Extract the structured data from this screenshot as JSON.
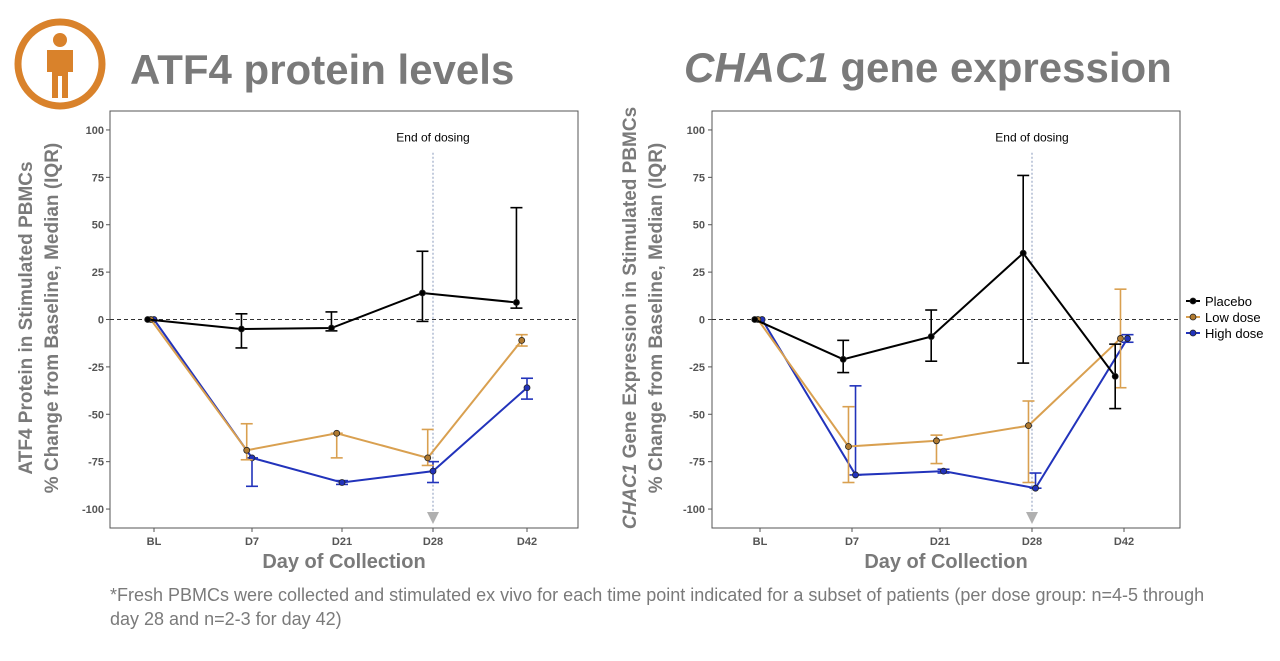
{
  "icon": {
    "name": "person-icon",
    "color": "#d9822b"
  },
  "footnote": "*Fresh PBMCs were collected and stimulated ex vivo for each time point indicated for a subset of patients (per dose group: n=4-5 through day  28 and n=2-3 for day 42)",
  "legend": {
    "items": [
      {
        "label": "Placebo",
        "color": "#000000"
      },
      {
        "label": "Low dose",
        "color": "#d9a050"
      },
      {
        "label": "High dose",
        "color": "#2233bb"
      }
    ]
  },
  "chart_data": [
    {
      "type": "line",
      "title": "ATF4 protein levels",
      "title_italic": "",
      "ylabel_lines": [
        "ATF4 Protein in Stimulated PBMCs",
        "% Change from Baseline, Median (IQR)"
      ],
      "xlabel": "Day of Collection",
      "categories": [
        "BL",
        "D7",
        "D21",
        "D28",
        "D42"
      ],
      "ylim": [
        -110,
        110
      ],
      "yticks": [
        100,
        75,
        50,
        25,
        0,
        -25,
        -50,
        -75,
        -100
      ],
      "ytick_labels": [
        "100",
        "75",
        "50",
        "25",
        "0",
        "-25",
        "-50",
        "-75",
        "-100"
      ],
      "reference_line_y": 0,
      "annotation": {
        "text": "End of dosing",
        "category": "D28"
      },
      "series": [
        {
          "name": "Placebo",
          "color": "#000000",
          "offset": -0.12,
          "values": [
            0,
            -5,
            -4.5,
            14,
            9
          ],
          "low": [
            null,
            -15,
            -6,
            -1,
            6
          ],
          "high": [
            null,
            3,
            4,
            36,
            59
          ]
        },
        {
          "name": "Low dose",
          "color": "#d9a050",
          "offset": -0.06,
          "values": [
            0,
            -69,
            -60,
            -73,
            -11
          ],
          "low": [
            null,
            -74,
            -73,
            -77,
            -14
          ],
          "high": [
            null,
            -55,
            -60,
            -58,
            -8
          ]
        },
        {
          "name": "High dose",
          "color": "#2233bb",
          "offset": 0,
          "values": [
            0,
            -73,
            -86,
            -80,
            -36
          ],
          "low": [
            null,
            -88,
            -87,
            -86,
            -42
          ],
          "high": [
            null,
            -73,
            -85,
            -75,
            -31
          ]
        }
      ]
    },
    {
      "type": "line",
      "title": "",
      "title_italic": "CHAC1",
      "title_rest": " gene expression",
      "ylabel_italic": "CHAC1",
      "ylabel_lines": [
        " Gene Expression in Stimulated PBMCs",
        "% Change from Baseline, Median (IQR)"
      ],
      "xlabel": "Day of Collection",
      "categories": [
        "BL",
        "D7",
        "D21",
        "D28",
        "D42"
      ],
      "ylim": [
        -110,
        110
      ],
      "yticks": [
        100,
        75,
        50,
        25,
        0,
        -25,
        -50,
        -75,
        -100
      ],
      "ytick_labels": [
        "100",
        "75",
        "50",
        "25",
        "0",
        "-25",
        "-50",
        "-75",
        "-100"
      ],
      "reference_line_y": 0,
      "annotation": {
        "text": "End of dosing",
        "category": "D28"
      },
      "series": [
        {
          "name": "Placebo",
          "color": "#000000",
          "offset": -0.1,
          "values": [
            0,
            -21,
            -9,
            35,
            -30
          ],
          "low": [
            null,
            -28,
            -22,
            -23,
            -47
          ],
          "high": [
            null,
            -11,
            5,
            76,
            -13
          ]
        },
        {
          "name": "Low dose",
          "color": "#d9a050",
          "offset": -0.04,
          "values": [
            0,
            -67,
            -64,
            -56,
            -10
          ],
          "low": [
            null,
            -86,
            -76,
            -86,
            -36
          ],
          "high": [
            null,
            -46,
            -61,
            -43,
            16
          ]
        },
        {
          "name": "High dose",
          "color": "#2233bb",
          "offset": 0.04,
          "values": [
            0,
            -82,
            -80,
            -89,
            -10
          ],
          "low": [
            null,
            -82,
            -81,
            -89,
            -12
          ],
          "high": [
            null,
            -35,
            -79,
            -81,
            -8
          ]
        }
      ]
    }
  ]
}
